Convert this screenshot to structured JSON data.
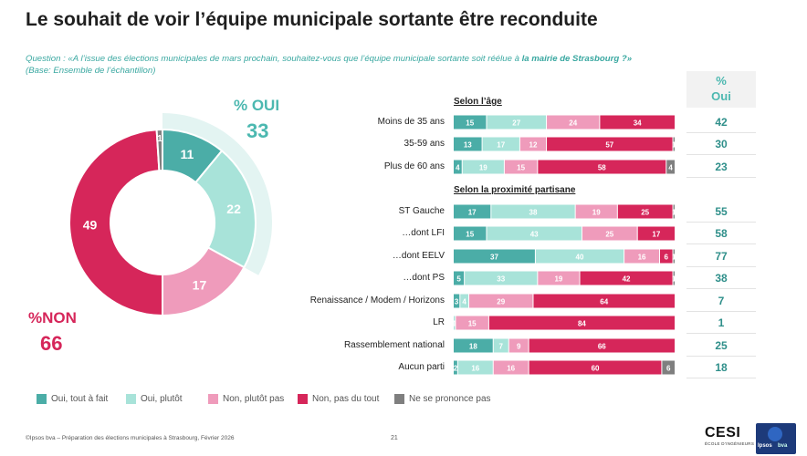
{
  "title": "Le souhait de voir l’équipe municipale sortante être reconduite",
  "question": {
    "prefix": "Question : «A l’issue des élections municipales de mars prochain, souhaitez-vous que l’équipe municipale sortante soit réélue à ",
    "emphasis": "la mairie de Strasbourg ?»",
    "base": "(Base: Ensemble de l’échantillon)"
  },
  "summary": {
    "oui_label": "% OUI",
    "oui_value": "33",
    "non_label": "%NON",
    "non_value": "66"
  },
  "column_header": {
    "line1": "%",
    "line2": "Oui"
  },
  "colors": {
    "oui_tout_a_fait": "#4bada7",
    "oui_plutot": "#a8e3d9",
    "non_plutot_pas": "#ef9bbb",
    "non_pas_du_tout": "#d6265a",
    "nsp": "#7f7f7f",
    "highlight": "#e3f4f2"
  },
  "sections": [
    {
      "title": "Selon l’âge"
    },
    {
      "title": "Selon la proximité partisane"
    }
  ],
  "legend": [
    {
      "label": "Oui, tout à fait",
      "color": "#4bada7"
    },
    {
      "label": "Oui, plutôt",
      "color": "#a8e3d9"
    },
    {
      "label": "Non, plutôt pas",
      "color": "#ef9bbb"
    },
    {
      "label": "Non, pas du tout",
      "color": "#d6265a"
    },
    {
      "label": "Ne se prononce pas",
      "color": "#7f7f7f"
    }
  ],
  "chart_data": [
    {
      "type": "pie",
      "categories": [
        "Oui, tout à fait",
        "Oui, plutôt",
        "Non, plutôt pas",
        "Non, pas du tout",
        "Ne se prononce pas"
      ],
      "values": [
        11,
        22,
        17,
        49,
        1
      ]
    },
    {
      "type": "bar",
      "orientation": "horizontal",
      "stacked": true,
      "categories": [
        "Moins de 35 ans",
        "35-59 ans",
        "Plus de 60 ans",
        "ST Gauche",
        "…dont LFI",
        "…dont EELV",
        "…dont PS",
        "Renaissance / Modem / Horizons",
        "LR",
        "Rassemblement national",
        "Aucun parti"
      ],
      "series": [
        {
          "name": "Oui, tout à fait",
          "values": [
            15,
            13,
            4,
            17,
            15,
            37,
            5,
            3,
            0,
            18,
            2
          ]
        },
        {
          "name": "Oui, plutôt",
          "values": [
            27,
            17,
            19,
            38,
            43,
            40,
            33,
            4,
            1,
            7,
            16
          ]
        },
        {
          "name": "Non, plutôt pas",
          "values": [
            24,
            12,
            15,
            19,
            25,
            16,
            19,
            29,
            15,
            9,
            16
          ]
        },
        {
          "name": "Non, pas du tout",
          "values": [
            34,
            57,
            58,
            25,
            17,
            6,
            42,
            64,
            84,
            66,
            60
          ]
        },
        {
          "name": "Ne se prononce pas",
          "values": [
            0,
            1,
            4,
            1,
            0,
            1,
            1,
            0,
            0,
            0,
            6
          ]
        }
      ],
      "pct_oui": [
        42,
        30,
        23,
        55,
        58,
        77,
        38,
        7,
        1,
        25,
        18
      ]
    }
  ],
  "footer": "©Ipsos bva – Préparation des élections municipales à Strasbourg, Février 2026",
  "page_number": "21",
  "logos": {
    "cesi": "CESI",
    "cesi_sub": "ÉCOLE D’INGÉNIEURS",
    "ipsos": "Ipsos",
    "bva": "bva"
  }
}
